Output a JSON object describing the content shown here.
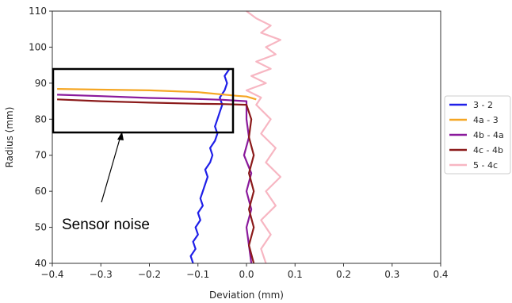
{
  "chart_data": {
    "type": "line",
    "title": "",
    "xlabel": "Deviation (mm)",
    "ylabel": "Radius (mm)",
    "xlim": [
      -0.4,
      0.4
    ],
    "ylim": [
      40,
      110
    ],
    "x_ticks": [
      "-0.4",
      "-0.3",
      "-0.2",
      "-0.1",
      "0.0",
      "0.1",
      "0.2",
      "0.3",
      "0.4"
    ],
    "y_ticks": [
      "40",
      "50",
      "60",
      "70",
      "80",
      "90",
      "100",
      "110"
    ],
    "grid": false,
    "legend_position": "right",
    "series": [
      {
        "name": "3 - 2",
        "color": "#1f1fe8",
        "points": [
          [
            -0.11,
            40
          ],
          [
            -0.115,
            42
          ],
          [
            -0.105,
            44
          ],
          [
            -0.11,
            46
          ],
          [
            -0.1,
            48
          ],
          [
            -0.105,
            50
          ],
          [
            -0.095,
            52
          ],
          [
            -0.1,
            54
          ],
          [
            -0.09,
            56
          ],
          [
            -0.095,
            58
          ],
          [
            -0.09,
            60
          ],
          [
            -0.085,
            62
          ],
          [
            -0.08,
            64
          ],
          [
            -0.085,
            66
          ],
          [
            -0.075,
            68
          ],
          [
            -0.07,
            70
          ],
          [
            -0.075,
            72
          ],
          [
            -0.065,
            74
          ],
          [
            -0.06,
            76
          ],
          [
            -0.065,
            78
          ],
          [
            -0.06,
            80
          ],
          [
            -0.055,
            82
          ],
          [
            -0.05,
            84
          ],
          [
            -0.055,
            86
          ],
          [
            -0.045,
            88
          ],
          [
            -0.04,
            90
          ],
          [
            -0.045,
            92
          ],
          [
            -0.035,
            94
          ]
        ]
      },
      {
        "name": "4a - 3",
        "color": "#f5a623",
        "points": [
          [
            -0.39,
            88.4
          ],
          [
            -0.3,
            88.2
          ],
          [
            -0.2,
            88.0
          ],
          [
            -0.1,
            87.5
          ],
          [
            -0.02,
            86.5
          ],
          [
            0.0,
            86.3
          ],
          [
            0.02,
            85.5
          ]
        ]
      },
      {
        "name": "4b - 4a",
        "color": "#8a1a9c",
        "points": [
          [
            -0.39,
            86.8
          ],
          [
            -0.3,
            86.4
          ],
          [
            -0.2,
            85.9
          ],
          [
            -0.1,
            85.6
          ],
          [
            -0.05,
            85.4
          ],
          [
            0.0,
            85.0
          ],
          [
            0.0,
            80
          ],
          [
            0.005,
            75
          ],
          [
            -0.005,
            70
          ],
          [
            0.01,
            65
          ],
          [
            0.0,
            60
          ],
          [
            0.01,
            55
          ],
          [
            0.0,
            50
          ],
          [
            0.005,
            45
          ],
          [
            0.01,
            40
          ]
        ]
      },
      {
        "name": "4c - 4b",
        "color": "#8b1a1a",
        "points": [
          [
            -0.39,
            85.5
          ],
          [
            -0.3,
            85.0
          ],
          [
            -0.2,
            84.6
          ],
          [
            -0.1,
            84.3
          ],
          [
            -0.05,
            84.2
          ],
          [
            0.0,
            84.0
          ],
          [
            0.01,
            80
          ],
          [
            0.005,
            75
          ],
          [
            0.015,
            70
          ],
          [
            0.005,
            65
          ],
          [
            0.015,
            60
          ],
          [
            0.005,
            55
          ],
          [
            0.015,
            50
          ],
          [
            0.005,
            45
          ],
          [
            0.015,
            40
          ]
        ]
      },
      {
        "name": "5 - 4c",
        "color": "#f7b6c2",
        "points": [
          [
            0.0,
            110
          ],
          [
            0.02,
            108
          ],
          [
            0.05,
            106
          ],
          [
            0.03,
            104
          ],
          [
            0.07,
            102
          ],
          [
            0.04,
            100
          ],
          [
            0.06,
            98
          ],
          [
            0.02,
            96
          ],
          [
            0.05,
            94
          ],
          [
            0.01,
            92
          ],
          [
            0.04,
            90
          ],
          [
            0.0,
            88
          ],
          [
            0.03,
            86
          ],
          [
            0.02,
            84
          ],
          [
            0.05,
            80
          ],
          [
            0.03,
            76
          ],
          [
            0.06,
            72
          ],
          [
            0.04,
            68
          ],
          [
            0.07,
            64
          ],
          [
            0.04,
            60
          ],
          [
            0.06,
            56
          ],
          [
            0.03,
            52
          ],
          [
            0.05,
            48
          ],
          [
            0.03,
            44
          ],
          [
            0.04,
            40
          ]
        ]
      }
    ],
    "annotations": [
      {
        "text": "Sensor noise"
      }
    ]
  }
}
